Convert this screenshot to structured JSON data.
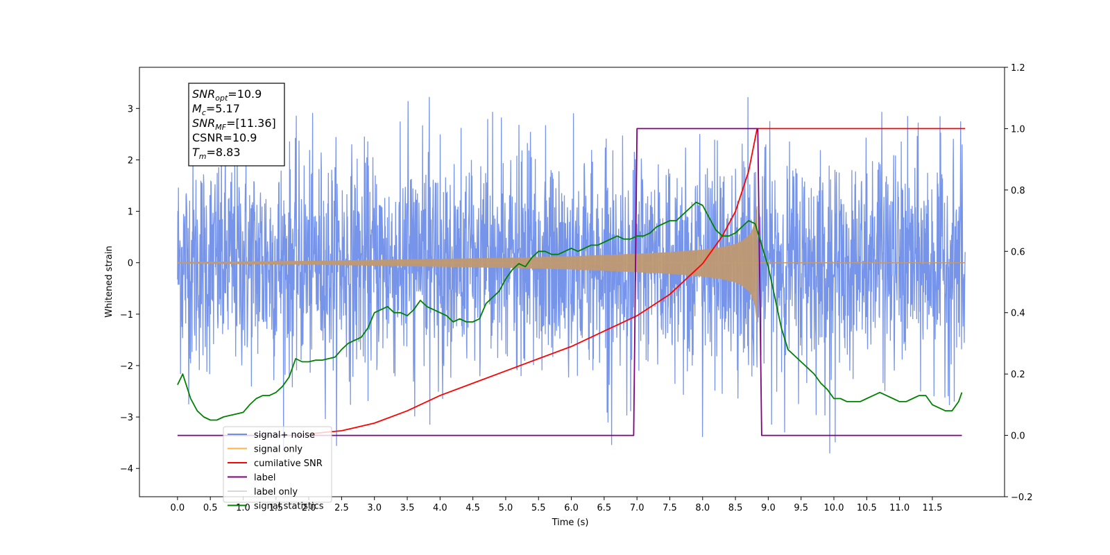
{
  "chart_data": {
    "type": "line",
    "title": "",
    "xlabel": "Time (s)",
    "ylabel": "Whitened strain",
    "xlim": [
      -0.58,
      12.6
    ],
    "ylim": [
      -4.55,
      3.8
    ],
    "y2lim": [
      -0.2,
      1.2
    ],
    "grid": false,
    "legend_position": "bottom-left",
    "x_ticks": [
      0.0,
      0.5,
      1.0,
      1.5,
      2.0,
      2.5,
      3.0,
      3.5,
      4.0,
      4.5,
      5.0,
      5.5,
      6.0,
      6.5,
      7.0,
      7.5,
      8.0,
      8.5,
      9.0,
      9.5,
      10.0,
      10.5,
      11.0,
      11.5
    ],
    "x_tick_labels": [
      "0.0",
      "0.5",
      "1.0",
      "1.5",
      "2.0",
      "2.5",
      "3.0",
      "3.5",
      "4.0",
      "4.5",
      "5.0",
      "5.5",
      "6.0",
      "6.5",
      "7.0",
      "7.5",
      "8.0",
      "8.5",
      "9.0",
      "9.5",
      "10.0",
      "10.5",
      "11.0",
      "11.5"
    ],
    "y_ticks": [
      -4,
      -3,
      -2,
      -1,
      0,
      1,
      2,
      3
    ],
    "y_tick_labels": [
      "−4",
      "−3",
      "−2",
      "−1",
      "0",
      "1",
      "2",
      "3"
    ],
    "y2_ticks": [
      -0.2,
      0.0,
      0.2,
      0.4,
      0.6,
      0.8,
      1.0,
      1.2
    ],
    "y2_tick_labels": [
      "−0.2",
      "0.0",
      "0.2",
      "0.4",
      "0.6",
      "0.8",
      "1.0",
      "1.2"
    ],
    "series": [
      {
        "name": "signal+ noise",
        "axis": "left",
        "color": "#6f8ee8",
        "noise_sigma": 1.05,
        "x_range": [
          0.0,
          12.0
        ],
        "x": [
          0.0,
          1.0,
          2.0,
          3.0,
          4.0,
          5.0,
          6.0,
          7.0,
          8.0,
          8.5,
          8.8,
          9.0,
          10.0,
          11.0,
          12.0
        ],
        "y_envelope": [
          2.2,
          2.4,
          2.5,
          2.6,
          2.7,
          2.8,
          2.8,
          2.9,
          3.0,
          3.0,
          3.0,
          2.8,
          2.7,
          2.6,
          2.4
        ]
      },
      {
        "name": "signal only",
        "axis": "left",
        "color": "#bf9a73",
        "legend_color": "#ffb347",
        "x": [
          0.0,
          2.0,
          3.0,
          4.0,
          5.0,
          6.0,
          7.0,
          7.5,
          8.0,
          8.3,
          8.5,
          8.6,
          8.7,
          8.75,
          8.8,
          8.83,
          8.84,
          12.0
        ],
        "amplitude": [
          0.01,
          0.03,
          0.05,
          0.07,
          0.09,
          0.12,
          0.17,
          0.2,
          0.25,
          0.3,
          0.36,
          0.42,
          0.52,
          0.6,
          0.8,
          1.1,
          0.0,
          0.0
        ]
      },
      {
        "name": "cumilative SNR",
        "axis": "right",
        "color": "#ff0000",
        "x": [
          2.0,
          2.5,
          3.0,
          3.5,
          4.0,
          4.5,
          5.0,
          5.5,
          6.0,
          6.5,
          7.0,
          7.5,
          8.0,
          8.3,
          8.5,
          8.7,
          8.83,
          9.0,
          10.0,
          11.0,
          12.0
        ],
        "y": [
          0.005,
          0.015,
          0.04,
          0.08,
          0.13,
          0.17,
          0.21,
          0.25,
          0.29,
          0.34,
          0.39,
          0.46,
          0.56,
          0.65,
          0.73,
          0.86,
          1.0,
          1.0,
          1.0,
          1.0,
          1.0
        ]
      },
      {
        "name": "label",
        "axis": "right",
        "color": "#800080",
        "x": [
          0.0,
          6.95,
          7.0,
          8.84,
          8.9,
          11.95
        ],
        "y": [
          0.0,
          0.0,
          1.0,
          1.0,
          0.0,
          0.0
        ]
      },
      {
        "name": "label only",
        "axis": "right",
        "color": "#d9d9d9",
        "legend_only": true
      },
      {
        "name": "signal statistics",
        "axis": "right",
        "color": "#008000",
        "x": [
          0.0,
          0.08,
          0.2,
          0.3,
          0.4,
          0.5,
          0.6,
          0.7,
          0.8,
          0.9,
          1.0,
          1.1,
          1.2,
          1.3,
          1.4,
          1.5,
          1.6,
          1.7,
          1.8,
          1.9,
          2.0,
          2.1,
          2.2,
          2.3,
          2.4,
          2.5,
          2.6,
          2.7,
          2.8,
          2.9,
          3.0,
          3.1,
          3.2,
          3.3,
          3.4,
          3.5,
          3.6,
          3.7,
          3.8,
          3.9,
          4.0,
          4.1,
          4.2,
          4.3,
          4.4,
          4.5,
          4.6,
          4.7,
          4.8,
          4.9,
          5.0,
          5.1,
          5.2,
          5.3,
          5.4,
          5.5,
          5.6,
          5.7,
          5.8,
          5.9,
          6.0,
          6.1,
          6.2,
          6.3,
          6.4,
          6.5,
          6.6,
          6.7,
          6.8,
          6.9,
          7.0,
          7.1,
          7.2,
          7.3,
          7.4,
          7.5,
          7.6,
          7.7,
          7.8,
          7.9,
          8.0,
          8.1,
          8.2,
          8.3,
          8.4,
          8.5,
          8.6,
          8.7,
          8.8,
          8.9,
          9.0,
          9.1,
          9.2,
          9.3,
          9.4,
          9.5,
          9.6,
          9.7,
          9.8,
          9.9,
          10.0,
          10.1,
          10.2,
          10.3,
          10.4,
          10.5,
          10.6,
          10.7,
          10.8,
          10.9,
          11.0,
          11.1,
          11.2,
          11.3,
          11.4,
          11.5,
          11.6,
          11.7,
          11.8,
          11.9,
          11.95
        ],
        "y": [
          0.165,
          0.2,
          0.12,
          0.08,
          0.06,
          0.05,
          0.05,
          0.06,
          0.065,
          0.07,
          0.075,
          0.1,
          0.12,
          0.13,
          0.13,
          0.14,
          0.16,
          0.19,
          0.25,
          0.24,
          0.24,
          0.245,
          0.245,
          0.25,
          0.255,
          0.28,
          0.3,
          0.31,
          0.32,
          0.35,
          0.4,
          0.41,
          0.42,
          0.4,
          0.4,
          0.39,
          0.41,
          0.44,
          0.42,
          0.41,
          0.4,
          0.39,
          0.37,
          0.38,
          0.37,
          0.37,
          0.38,
          0.43,
          0.45,
          0.47,
          0.51,
          0.54,
          0.56,
          0.55,
          0.58,
          0.6,
          0.6,
          0.59,
          0.59,
          0.6,
          0.61,
          0.6,
          0.61,
          0.62,
          0.62,
          0.63,
          0.64,
          0.65,
          0.64,
          0.64,
          0.65,
          0.65,
          0.66,
          0.68,
          0.69,
          0.7,
          0.7,
          0.72,
          0.74,
          0.76,
          0.75,
          0.71,
          0.67,
          0.65,
          0.65,
          0.66,
          0.68,
          0.7,
          0.69,
          0.62,
          0.55,
          0.45,
          0.35,
          0.28,
          0.26,
          0.24,
          0.22,
          0.2,
          0.17,
          0.15,
          0.12,
          0.12,
          0.11,
          0.11,
          0.11,
          0.12,
          0.13,
          0.14,
          0.13,
          0.12,
          0.11,
          0.11,
          0.12,
          0.13,
          0.13,
          0.1,
          0.09,
          0.08,
          0.08,
          0.11,
          0.14
        ]
      }
    ],
    "info_box": {
      "lines": [
        {
          "base": "SNR",
          "sub": "opt",
          "value": "=10.9"
        },
        {
          "base": "M",
          "sub": "c",
          "value": "=5.17"
        },
        {
          "base": "SNR",
          "sub": "MF",
          "value": "=[11.36]"
        },
        {
          "base": "CSNR",
          "sub": "",
          "value": "=10.9"
        },
        {
          "base": "T",
          "sub": "m",
          "value": "=8.83"
        }
      ]
    }
  }
}
